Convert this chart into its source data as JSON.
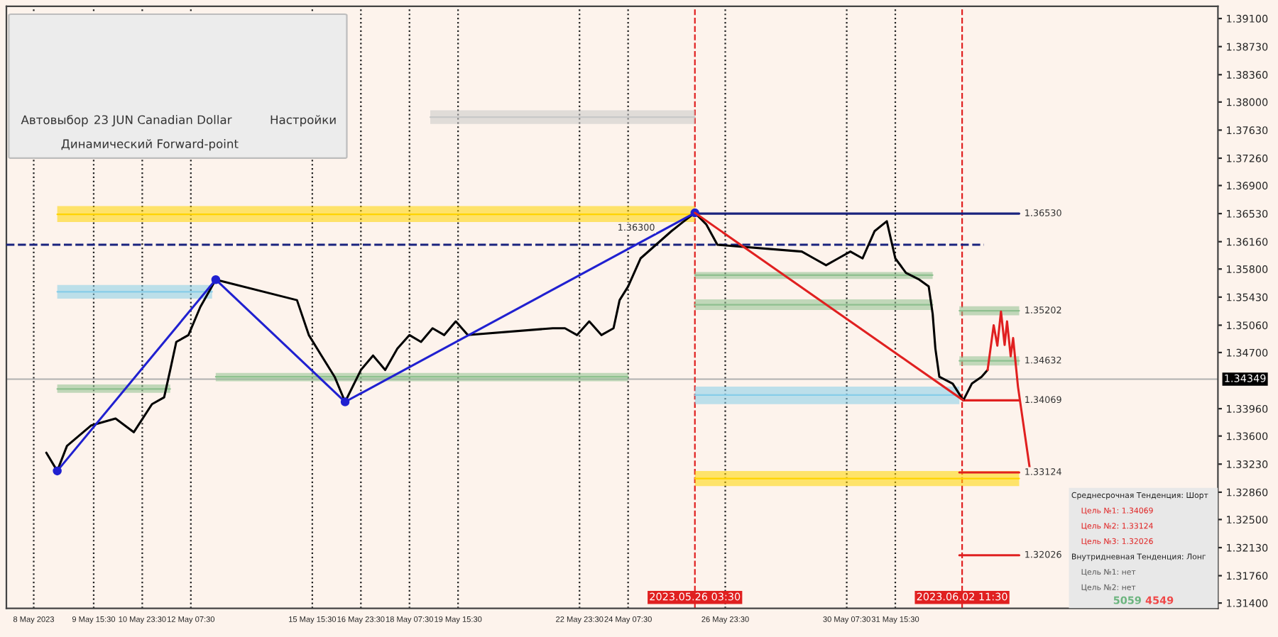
{
  "chart_data": {
    "type": "line",
    "xlim": [
      "2023-05-07T06:00",
      "2023-06-09T12:00"
    ],
    "ylim": [
      1.3133,
      1.3926
    ],
    "xticks": [
      {
        "value": "2023-05-08",
        "label": "8 May 2023"
      },
      {
        "value": "2023-05-09T15:30",
        "label": "9 May 15:30"
      },
      {
        "value": "2023-05-10T23:30",
        "label": "10 May 23:30"
      },
      {
        "value": "2023-05-12T07:30",
        "label": "12 May 07:30"
      },
      {
        "value": "2023-05-15T15:30",
        "label": "15 May 15:30"
      },
      {
        "value": "2023-05-16T23:30",
        "label": "16 May 23:30"
      },
      {
        "value": "2023-05-18T07:30",
        "label": "18 May 07:30"
      },
      {
        "value": "2023-05-19T15:30",
        "label": "19 May 15:30"
      },
      {
        "value": "2023-05-22T23:30",
        "label": "22 May 23:30"
      },
      {
        "value": "2023-05-24T07:30",
        "label": "24 May 07:30"
      },
      {
        "value": "2023-05-26T23:30",
        "label": "26 May 23:30"
      },
      {
        "value": "2023-05-30T07:30",
        "label": "30 May 07:30"
      },
      {
        "value": "2023-05-31T15:30",
        "label": "31 May 15:30"
      }
    ],
    "yticks": [
      {
        "value": 1.391,
        "label": "1.39100"
      },
      {
        "value": 1.3873,
        "label": "1.38730"
      },
      {
        "value": 1.3836,
        "label": "1.38360"
      },
      {
        "value": 1.38,
        "label": "1.38000"
      },
      {
        "value": 1.3763,
        "label": "1.37630"
      },
      {
        "value": 1.3726,
        "label": "1.37260"
      },
      {
        "value": 1.369,
        "label": "1.36900"
      },
      {
        "value": 1.3653,
        "label": "1.36530"
      },
      {
        "value": 1.3616,
        "label": "1.36160"
      },
      {
        "value": 1.358,
        "label": "1.35800"
      },
      {
        "value": 1.3543,
        "label": "1.35430"
      },
      {
        "value": 1.3506,
        "label": "1.35060"
      },
      {
        "value": 1.347,
        "label": "1.34700"
      },
      {
        "value": 1.3396,
        "label": "1.33960"
      },
      {
        "value": 1.336,
        "label": "1.33600"
      },
      {
        "value": 1.3323,
        "label": "1.33230"
      },
      {
        "value": 1.3286,
        "label": "1.32860"
      },
      {
        "value": 1.325,
        "label": "1.32500"
      },
      {
        "value": 1.3213,
        "label": "1.32130"
      },
      {
        "value": 1.3176,
        "label": "1.31760"
      },
      {
        "value": 1.314,
        "label": "1.31400"
      }
    ],
    "grid": "x",
    "series": [
      {
        "color": "#c8c8c8",
        "x": [
          "2023-05-18T21:12",
          "2023-05-26T03:30"
        ],
        "values": [
          1.378,
          1.378
        ],
        "lower": [
          1.3771,
          1.3771
        ],
        "upper": [
          1.3789,
          1.3789
        ]
      },
      {
        "color": "#ffd400",
        "x": [
          "2023-05-08T15:30",
          "2023-05-26T03:30"
        ],
        "values": [
          1.3652,
          1.3652
        ],
        "lower": [
          1.3642,
          1.3642
        ],
        "upper": [
          1.3663,
          1.3663
        ]
      },
      {
        "color": "#ffd500",
        "x": [
          "2023-05-26T03:30",
          "2023-06-04T01:06"
        ],
        "values": [
          1.3304,
          1.3304
        ],
        "lower": [
          1.3294,
          1.3294
        ],
        "upper": [
          1.3314,
          1.3314
        ]
      },
      {
        "color": "#87cde8",
        "x": [
          "2023-05-08T15:30",
          "2023-05-12T21:30"
        ],
        "values": [
          1.355,
          1.355
        ],
        "lower": [
          1.3541,
          1.3541
        ],
        "upper": [
          1.3559,
          1.3559
        ]
      },
      {
        "color": "#87cde9",
        "x": [
          "2023-05-26T03:30",
          "2023-06-02T09:42"
        ],
        "values": [
          1.3414,
          1.3414
        ],
        "lower": [
          1.3402,
          1.3402
        ],
        "upper": [
          1.3425,
          1.3425
        ]
      },
      {
        "color": "#8fc08f",
        "x": [
          "2023-05-08T15:30",
          "2023-05-11T17:54"
        ],
        "values": [
          1.3422,
          1.3422
        ],
        "lower": [
          1.3417,
          1.3417
        ],
        "upper": [
          1.3428,
          1.3428
        ]
      },
      {
        "color": "#8fc18f",
        "x": [
          "2023-05-12T23:54",
          "2023-05-24T07:30"
        ],
        "values": [
          1.3438,
          1.3438
        ],
        "lower": [
          1.3432,
          1.3432
        ],
        "upper": [
          1.3443,
          1.3443
        ]
      },
      {
        "color": "#8fc08f",
        "x": [
          "2023-05-26T03:30",
          "2023-06-01T16:06"
        ],
        "values": [
          1.3572,
          1.3572
        ],
        "lower": [
          1.3567,
          1.3567
        ],
        "upper": [
          1.3576,
          1.3576
        ]
      },
      {
        "color": "#8fc090",
        "x": [
          "2023-05-26T03:30",
          "2023-06-01T16:06"
        ],
        "values": [
          1.3533,
          1.3533
        ],
        "lower": [
          1.3526,
          1.3526
        ],
        "upper": [
          1.354,
          1.354
        ]
      },
      {
        "color": "#8fbf8f",
        "x": [
          "2023-06-02T09:42",
          "2023-06-04T01:06"
        ],
        "values": [
          1.3525,
          1.3525
        ],
        "lower": [
          1.3519,
          1.3519
        ],
        "upper": [
          1.3531,
          1.3531
        ]
      },
      {
        "color": "#8fc191",
        "x": [
          "2023-06-02T09:42",
          "2023-06-04T01:06"
        ],
        "values": [
          1.3459,
          1.3459
        ],
        "lower": [
          1.3453,
          1.3453
        ],
        "upper": [
          1.3465,
          1.3465
        ]
      },
      {
        "color": "#1a237e",
        "line_style": "dashed",
        "x": [
          "2023-05-07T06:00",
          "2023-06-03T01:54"
        ],
        "values": [
          1.3612,
          1.3612
        ]
      },
      {
        "color": "#1a237e",
        "x": [
          "2023-05-26T03:30",
          "2023-06-04T01:06"
        ],
        "values": [
          1.3653,
          1.3653
        ]
      },
      {
        "color": "#e02020",
        "x": [
          "2023-06-02T12:18",
          "2023-06-04T01:06"
        ],
        "values": [
          1.3407,
          1.3407
        ]
      },
      {
        "color": "#e02020",
        "x": [
          "2023-06-02T09:42",
          "2023-06-04T01:06"
        ],
        "values": [
          1.3312,
          1.3312
        ]
      },
      {
        "color": "#e02020",
        "x": [
          "2023-06-02T09:42",
          "2023-06-04T01:06"
        ],
        "values": [
          1.3203,
          1.3203
        ]
      },
      {
        "color": "#000000",
        "x": [
          "2023-05-08T08:18",
          "2023-05-08T15:30",
          "2023-05-08T21:54",
          "2023-05-09T13:54",
          "2023-05-10T05:54",
          "2023-05-10T17:54",
          "2023-05-11T05:54",
          "2023-05-11T13:54",
          "2023-05-11T17:54",
          "2023-05-11T21:54",
          "2023-05-12T05:54",
          "2023-05-12T13:44",
          "2023-05-12T23:54",
          "2023-05-15T05:24",
          "2023-05-15T13:12",
          "2023-05-15T21:30",
          "2023-05-16T06:12",
          "2023-05-16T13:06",
          "2023-05-16T23:30",
          "2023-05-17T07:30",
          "2023-05-17T15:30",
          "2023-05-17T23:30",
          "2023-05-18T07:30",
          "2023-05-18T15:06",
          "2023-05-18T22:42",
          "2023-05-19T06:24",
          "2023-05-19T14:00",
          "2023-05-19T21:54",
          "2023-05-22T05:54",
          "2023-05-22T13:54",
          "2023-05-22T21:54",
          "2023-05-23T05:54",
          "2023-05-23T13:54",
          "2023-05-23T21:54",
          "2023-05-24T01:54",
          "2023-05-24T07:30",
          "2023-05-24T15:42",
          "2023-05-25T01:54",
          "2023-05-25T12:06",
          "2023-05-25T20:18",
          "2023-05-26T03:30",
          "2023-05-26T10:54",
          "2023-05-26T18:18",
          "2023-05-29T01:54",
          "2023-05-29T09:54",
          "2023-05-29T17:54",
          "2023-05-30T01:54",
          "2023-05-30T09:54",
          "2023-05-30T17:54",
          "2023-05-31T01:54",
          "2023-05-31T09:54",
          "2023-05-31T15:30",
          "2023-05-31T22:30",
          "2023-06-01T07:18",
          "2023-06-01T13:30",
          "2023-06-01T16:06",
          "2023-06-01T17:54",
          "2023-06-01T20:30",
          "2023-06-02T05:18",
          "2023-06-02T12:18",
          "2023-06-02T17:54",
          "2023-06-03T00:18",
          "2023-06-03T04:18"
        ],
        "values": [
          1.3338,
          1.3314,
          1.3347,
          1.3374,
          1.3383,
          1.3365,
          1.3402,
          1.3411,
          1.3447,
          1.3484,
          1.3493,
          1.353,
          1.3566,
          1.3539,
          1.3493,
          1.3466,
          1.3438,
          1.3405,
          1.3447,
          1.3466,
          1.3447,
          1.3475,
          1.3493,
          1.3484,
          1.3502,
          1.3493,
          1.3511,
          1.3493,
          1.3502,
          1.3502,
          1.3493,
          1.3511,
          1.3493,
          1.3502,
          1.3539,
          1.3557,
          1.3594,
          1.3612,
          1.363,
          1.3643,
          1.3654,
          1.3639,
          1.3612,
          1.3603,
          1.3594,
          1.3585,
          1.3594,
          1.3603,
          1.3594,
          1.363,
          1.3643,
          1.3594,
          1.3575,
          1.3566,
          1.3557,
          1.3521,
          1.3475,
          1.3438,
          1.3429,
          1.3407,
          1.3429,
          1.3438,
          1.3447
        ]
      },
      {
        "color": "#2020d0",
        "marker": "circle",
        "x": [
          "2023-05-08T15:30",
          "2023-05-12T23:54",
          "2023-05-16T13:06",
          "2023-05-26T03:30"
        ],
        "values": [
          1.3314,
          1.3566,
          1.3405,
          1.3654
        ]
      },
      {
        "color": "#e02020",
        "x": [
          "2023-05-26T03:30",
          "2023-06-02T12:18"
        ],
        "values": [
          1.3654,
          1.3407
        ]
      },
      {
        "color": "#e02020",
        "x": [
          "2023-06-03T04:18",
          "2023-06-03T08:18",
          "2023-06-03T10:42",
          "2023-06-03T13:06",
          "2023-06-03T15:30",
          "2023-06-03T17:06",
          "2023-06-03T19:30",
          "2023-06-03T21:06",
          "2023-06-04T00:18",
          "2023-06-04T08:18"
        ],
        "values": [
          1.3447,
          1.3506,
          1.3479,
          1.3524,
          1.348,
          1.3511,
          1.3465,
          1.3489,
          1.3425,
          1.3314
        ]
      }
    ],
    "ref_lines": [
      {
        "axis": "y",
        "value": 1.34349,
        "label": "1.34349",
        "color": "#b0b0b0"
      },
      {
        "axis": "x",
        "value": "2023-05-26T03:30",
        "label": "2023.05.26 03:30",
        "color": "#e02020",
        "line_style": "dashed"
      },
      {
        "axis": "x",
        "value": "2023-06-02T11:30",
        "label": "2023.06.02 11:30",
        "color": "#e02020",
        "line_style": "dashed"
      }
    ],
    "annotations": [
      "Автовыбор",
      "23 JUN Canadian Dollar",
      "Настройки",
      "Динамический Forward-point",
      "Среднесрочная Тенденция: Шорт",
      "Цель №1: 1.34069",
      "Цель №2: 1.33124",
      "Цель №3: 1.32026",
      "Внутридневная Тенденция: Лонг",
      "Цель №1: нет",
      "Цель №2: нет",
      "5059",
      "4549",
      {
        "text": "1.36530",
        "x": "2023-06-04T01:54",
        "y": 1.3653
      },
      {
        "text": "1.35202",
        "x": "2023-06-04T01:54",
        "y": 1.3525
      },
      {
        "text": "1.34632",
        "x": "2023-06-04T01:54",
        "y": 1.3459
      },
      {
        "text": "1.34069",
        "x": "2023-06-04T01:54",
        "y": 1.3407
      },
      {
        "text": "1.33124",
        "x": "2023-06-04T01:54",
        "y": 1.3312
      },
      {
        "text": "1.32026",
        "x": "2023-06-04T01:54",
        "y": 1.3203
      },
      {
        "text": "1.36300",
        "x": "2023-05-23T21:54",
        "y": 1.3634
      }
    ]
  }
}
